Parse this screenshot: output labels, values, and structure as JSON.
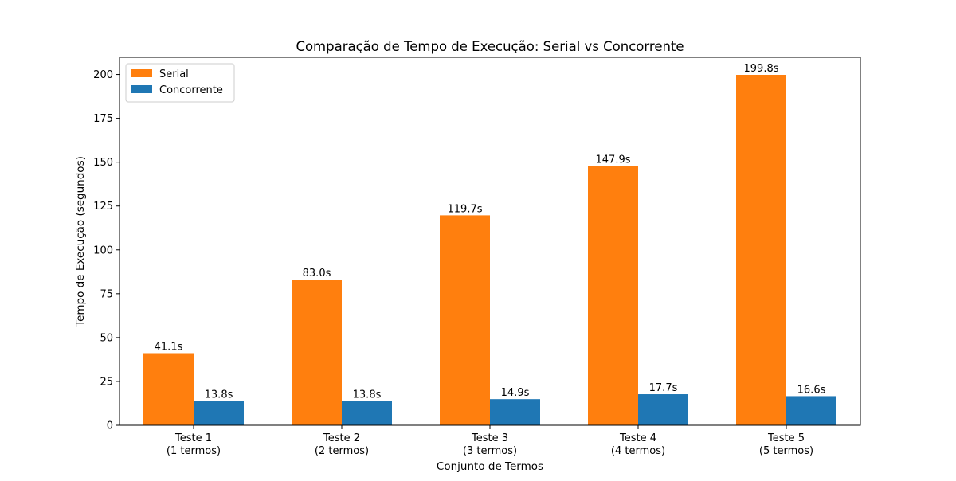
{
  "chart_data": {
    "type": "bar",
    "title": "Comparação de Tempo de Execução: Serial vs Concorrente",
    "xlabel": "Conjunto de Termos",
    "ylabel": "Tempo de Execução (segundos)",
    "categories": [
      [
        "Teste 1",
        "(1 termos)"
      ],
      [
        "Teste 2",
        "(2 termos)"
      ],
      [
        "Teste 3",
        "(3 termos)"
      ],
      [
        "Teste 4",
        "(4 termos)"
      ],
      [
        "Teste 5",
        "(5 termos)"
      ]
    ],
    "series": [
      {
        "name": "Serial",
        "color": "#ff7f0e",
        "values": [
          41.1,
          83.0,
          119.7,
          147.9,
          199.8
        ],
        "labels": [
          "41.1s",
          "83.0s",
          "119.7s",
          "147.9s",
          "199.8s"
        ]
      },
      {
        "name": "Concorrente",
        "color": "#1f77b4",
        "values": [
          13.8,
          13.8,
          14.9,
          17.7,
          16.6
        ],
        "labels": [
          "13.8s",
          "13.8s",
          "14.9s",
          "17.7s",
          "16.6s"
        ]
      }
    ],
    "ylim": [
      0,
      209.79
    ],
    "yticks": [
      0,
      25,
      50,
      75,
      100,
      125,
      150,
      175,
      200
    ],
    "grid": false,
    "legend": "top-left"
  }
}
